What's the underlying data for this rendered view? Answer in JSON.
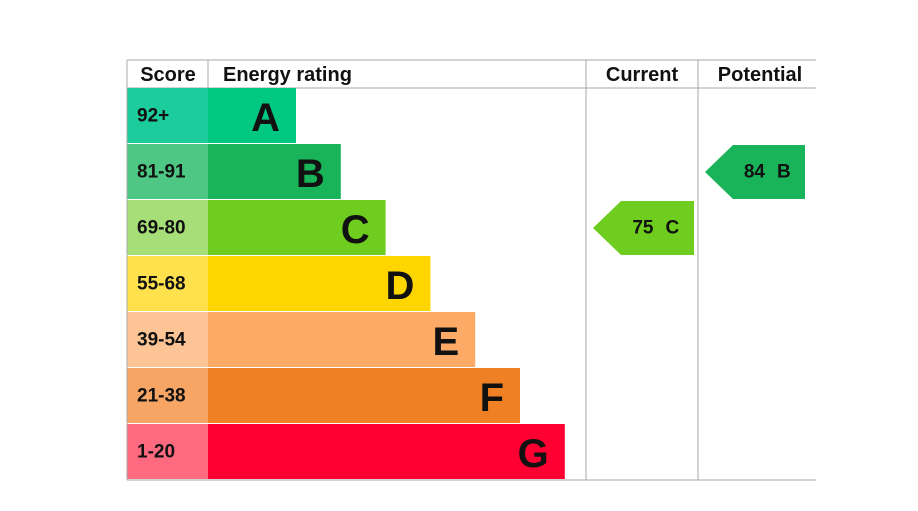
{
  "headers": {
    "score": "Score",
    "rating": "Energy rating",
    "current": "Current",
    "potential": "Potential"
  },
  "bands": [
    {
      "score": "92+",
      "letter": "A",
      "color": "#00c781",
      "score_color": "#1ccc9d"
    },
    {
      "score": "81-91",
      "letter": "B",
      "color": "#19b459",
      "score_color": "#4dc783"
    },
    {
      "score": "69-80",
      "letter": "C",
      "color": "#6ecd1f",
      "score_color": "#a6df78"
    },
    {
      "score": "55-68",
      "letter": "D",
      "color": "#ffd500",
      "score_color": "#ffe14d"
    },
    {
      "score": "39-54",
      "letter": "E",
      "color": "#fcaa65",
      "score_color": "#fdc596"
    },
    {
      "score": "21-38",
      "letter": "F",
      "color": "#ef8023",
      "score_color": "#f6a565"
    },
    {
      "score": "1-20",
      "letter": "G",
      "color": "#ff0033",
      "score_color": "#ff6a80"
    }
  ],
  "current": {
    "value": 75,
    "letter": "C"
  },
  "potential": {
    "value": 84,
    "letter": "B"
  }
}
